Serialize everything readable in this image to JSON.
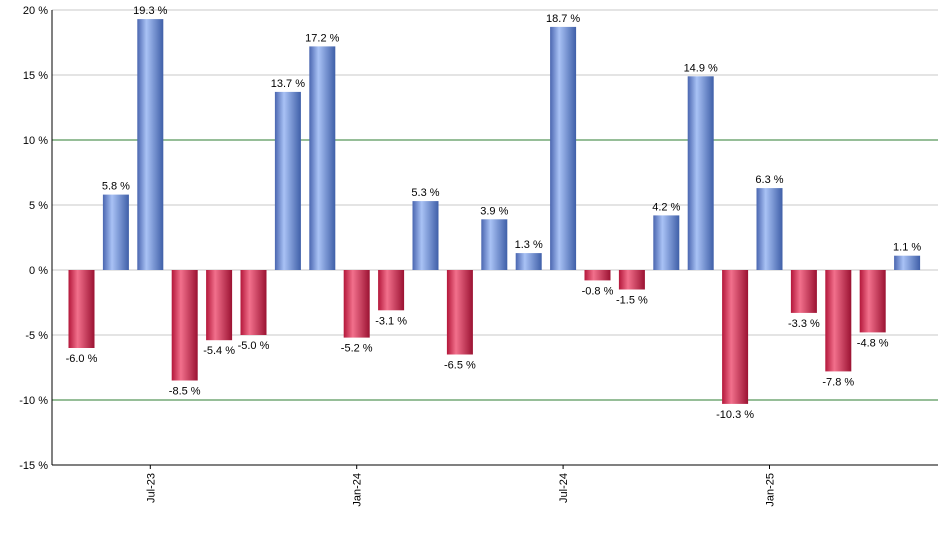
{
  "chart_data": {
    "type": "bar",
    "title": "",
    "xlabel": "",
    "ylabel": "",
    "ylim": [
      -15,
      20
    ],
    "y_ticks": [
      20,
      15,
      10,
      5,
      0,
      -5,
      -10,
      -15
    ],
    "y_tick_suffix": " %",
    "value_suffix": " %",
    "x_tick_labels": [
      {
        "label": "Jul-23",
        "index": 2
      },
      {
        "label": "Jan-24",
        "index": 8
      },
      {
        "label": "Jul-24",
        "index": 14
      },
      {
        "label": "Jan-25",
        "index": 20
      }
    ],
    "values": [
      -6.0,
      5.8,
      19.3,
      -8.5,
      -5.4,
      -5.0,
      13.7,
      17.2,
      -5.2,
      -3.1,
      5.3,
      -6.5,
      3.9,
      1.3,
      18.7,
      -0.8,
      -1.5,
      4.2,
      14.9,
      -10.3,
      6.3,
      -3.3,
      -7.8,
      -4.8,
      1.1
    ],
    "highlight_lines": [
      10,
      -10
    ],
    "colors": {
      "positive": "#6f8fd8",
      "negative": "#cc2a4a",
      "grid": "#c8c8c8",
      "highlight_line": "#2e7d32",
      "axis": "#000000"
    },
    "grid": true,
    "legend": "none"
  }
}
